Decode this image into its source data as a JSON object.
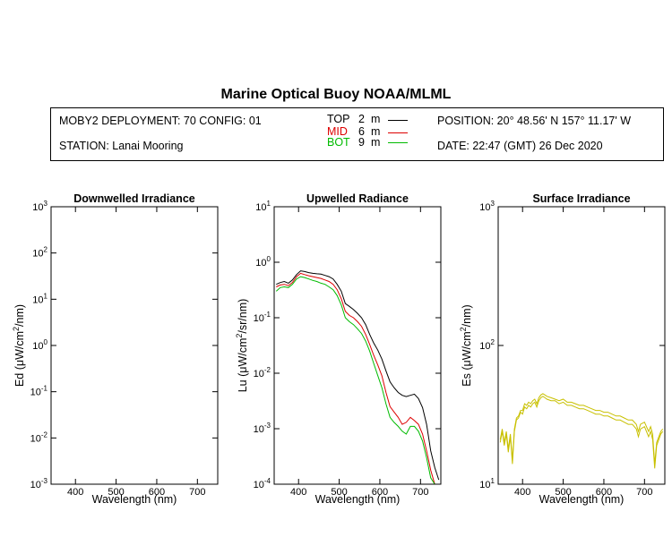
{
  "header": {
    "title": "Marine Optical Buoy NOAA/MLML",
    "deployment": "MOBY2 DEPLOYMENT: 70 CONFIG: 01",
    "station": "STATION: Lanai Mooring",
    "position": "POSITION: 20° 48.56' N   157° 11.17' W",
    "date": "DATE: 22:47 (GMT) 26 Dec 2020",
    "legend": [
      {
        "key": "top",
        "name": "TOP",
        "depth": "2",
        "unit": "m",
        "color": "#000000"
      },
      {
        "key": "mid",
        "name": "MID",
        "depth": "6",
        "unit": "m",
        "color": "#dd0000"
      },
      {
        "key": "bot",
        "name": "BOT",
        "depth": "9",
        "unit": "m",
        "color": "#00bb00"
      }
    ]
  },
  "chart_data": [
    {
      "type": "line",
      "title": "Downwelled Irradiance",
      "xlabel": "Wavelength (nm)",
      "ylabel": "Ed  (μW/cm²/nm)",
      "xlim": [
        340,
        750
      ],
      "ylim": [
        0.001,
        1000
      ],
      "yscale": "log",
      "xticks": [
        "400",
        "500",
        "600",
        "700"
      ],
      "yticks": [
        {
          "base": "10",
          "exp": "-3"
        },
        {
          "base": "10",
          "exp": "-2"
        },
        {
          "base": "10",
          "exp": "-1"
        },
        {
          "base": "10",
          "exp": "0"
        },
        {
          "base": "10",
          "exp": "1"
        },
        {
          "base": "10",
          "exp": "2"
        },
        {
          "base": "10",
          "exp": "3"
        }
      ],
      "series": []
    },
    {
      "type": "line",
      "title": "Upwelled Radiance",
      "xlabel": "Wavelength (nm)",
      "ylabel": "Lu  (μW/cm²/sr/nm)",
      "xlim": [
        340,
        750
      ],
      "ylim": [
        0.0001,
        10
      ],
      "yscale": "log",
      "xticks": [
        "400",
        "500",
        "600",
        "700"
      ],
      "yticks": [
        {
          "base": "10",
          "exp": "-4"
        },
        {
          "base": "10",
          "exp": "-3"
        },
        {
          "base": "10",
          "exp": "-2"
        },
        {
          "base": "10",
          "exp": "-1"
        },
        {
          "base": "10",
          "exp": "0"
        },
        {
          "base": "10",
          "exp": "1"
        }
      ],
      "series": [
        {
          "key": "top",
          "color": "#000000",
          "x": [
            345,
            355,
            365,
            375,
            385,
            395,
            405,
            415,
            425,
            435,
            445,
            455,
            465,
            475,
            485,
            495,
            505,
            515,
            525,
            535,
            545,
            555,
            565,
            575,
            585,
            595,
            605,
            615,
            625,
            635,
            645,
            655,
            665,
            675,
            685,
            695,
            705,
            715,
            725,
            735,
            745
          ],
          "y": [
            0.4,
            0.43,
            0.45,
            0.42,
            0.48,
            0.6,
            0.7,
            0.68,
            0.65,
            0.63,
            0.62,
            0.61,
            0.58,
            0.55,
            0.5,
            0.4,
            0.3,
            0.18,
            0.16,
            0.14,
            0.12,
            0.1,
            0.075,
            0.05,
            0.035,
            0.026,
            0.018,
            0.011,
            0.007,
            0.0055,
            0.0045,
            0.004,
            0.0038,
            0.004,
            0.0042,
            0.0035,
            0.0024,
            0.0012,
            0.0004,
            0.0002,
            0.00012
          ]
        },
        {
          "key": "mid",
          "color": "#dd0000",
          "x": [
            345,
            355,
            365,
            375,
            385,
            395,
            405,
            415,
            425,
            435,
            445,
            455,
            465,
            475,
            485,
            495,
            505,
            515,
            525,
            535,
            545,
            555,
            565,
            575,
            585,
            595,
            605,
            615,
            625,
            635,
            645,
            655,
            665,
            675,
            685,
            695,
            705,
            715,
            725,
            735,
            745
          ],
          "y": [
            0.36,
            0.39,
            0.4,
            0.38,
            0.43,
            0.55,
            0.63,
            0.6,
            0.57,
            0.55,
            0.53,
            0.51,
            0.48,
            0.45,
            0.4,
            0.32,
            0.22,
            0.13,
            0.11,
            0.1,
            0.085,
            0.07,
            0.05,
            0.033,
            0.021,
            0.014,
            0.009,
            0.0045,
            0.0025,
            0.002,
            0.0016,
            0.0012,
            0.0013,
            0.0016,
            0.0014,
            0.0012,
            0.0008,
            0.0004,
            0.00018,
            0.0001,
            0.0001
          ]
        },
        {
          "key": "bot",
          "color": "#00bb00",
          "x": [
            345,
            355,
            365,
            375,
            385,
            395,
            405,
            415,
            425,
            435,
            445,
            455,
            465,
            475,
            485,
            495,
            505,
            515,
            525,
            535,
            545,
            555,
            565,
            575,
            585,
            595,
            605,
            615,
            625,
            635,
            645,
            655,
            665,
            675,
            685,
            695,
            705,
            715,
            725,
            735,
            745
          ],
          "y": [
            0.3,
            0.35,
            0.36,
            0.35,
            0.4,
            0.5,
            0.55,
            0.53,
            0.5,
            0.47,
            0.45,
            0.42,
            0.4,
            0.36,
            0.32,
            0.25,
            0.17,
            0.1,
            0.085,
            0.075,
            0.063,
            0.052,
            0.038,
            0.025,
            0.015,
            0.009,
            0.0055,
            0.0028,
            0.0016,
            0.0013,
            0.0011,
            0.0009,
            0.0008,
            0.0011,
            0.0011,
            0.0009,
            0.0006,
            0.0003,
            0.00013,
            0.0001,
            0.0001
          ]
        }
      ]
    },
    {
      "type": "line",
      "title": "Surface Irradiance",
      "xlabel": "Wavelength (nm)",
      "ylabel": "Es  (μW/cm²/nm)",
      "xlim": [
        340,
        750
      ],
      "ylim": [
        10,
        1000
      ],
      "yscale": "log",
      "xticks": [
        "400",
        "500",
        "600",
        "700"
      ],
      "yticks": [
        {
          "base": "10",
          "exp": "1"
        },
        {
          "base": "10",
          "exp": "2"
        },
        {
          "base": "10",
          "exp": "3"
        }
      ],
      "series": [
        {
          "key": "es",
          "color": "#c8c000",
          "x": [
            345,
            350,
            355,
            360,
            365,
            370,
            375,
            380,
            385,
            390,
            395,
            400,
            405,
            410,
            415,
            420,
            425,
            430,
            435,
            440,
            445,
            450,
            455,
            460,
            470,
            480,
            490,
            500,
            510,
            520,
            530,
            540,
            550,
            560,
            570,
            580,
            590,
            600,
            610,
            620,
            630,
            640,
            650,
            660,
            670,
            680,
            685,
            690,
            700,
            710,
            715,
            720,
            725,
            730,
            740,
            745
          ],
          "y": [
            20,
            24,
            19,
            23,
            17,
            22,
            14,
            24,
            29,
            30,
            33,
            32,
            36,
            35,
            37,
            36,
            38,
            39,
            36,
            40,
            42,
            43,
            42,
            41,
            40,
            40,
            38,
            39,
            37,
            37,
            36,
            35,
            35,
            34,
            33,
            32,
            32,
            31,
            31,
            30,
            29,
            29,
            28,
            27,
            27,
            25,
            22,
            25,
            26,
            22,
            24,
            21,
            13,
            19,
            23,
            24
          ]
        },
        {
          "key": "es2",
          "color": "#c8c000",
          "x": [
            345,
            350,
            355,
            360,
            365,
            370,
            375,
            380,
            385,
            390,
            395,
            400,
            405,
            410,
            415,
            420,
            425,
            430,
            435,
            440,
            445,
            450,
            455,
            460,
            470,
            480,
            490,
            500,
            510,
            520,
            530,
            540,
            550,
            560,
            570,
            580,
            590,
            600,
            610,
            620,
            630,
            640,
            650,
            660,
            670,
            680,
            685,
            690,
            700,
            710,
            715,
            720,
            725,
            730,
            740,
            745
          ],
          "y": [
            21,
            25,
            20,
            24,
            18,
            23,
            15,
            25,
            30,
            31,
            34,
            34,
            38,
            37,
            39,
            38,
            40,
            41,
            38,
            42,
            44,
            45,
            44,
            43,
            42,
            41,
            40,
            41,
            39,
            39,
            38,
            37,
            37,
            36,
            35,
            34,
            34,
            33,
            33,
            32,
            31,
            31,
            30,
            29,
            29,
            27,
            24,
            27,
            28,
            24,
            26,
            23,
            14,
            20,
            24,
            25
          ]
        }
      ]
    }
  ]
}
